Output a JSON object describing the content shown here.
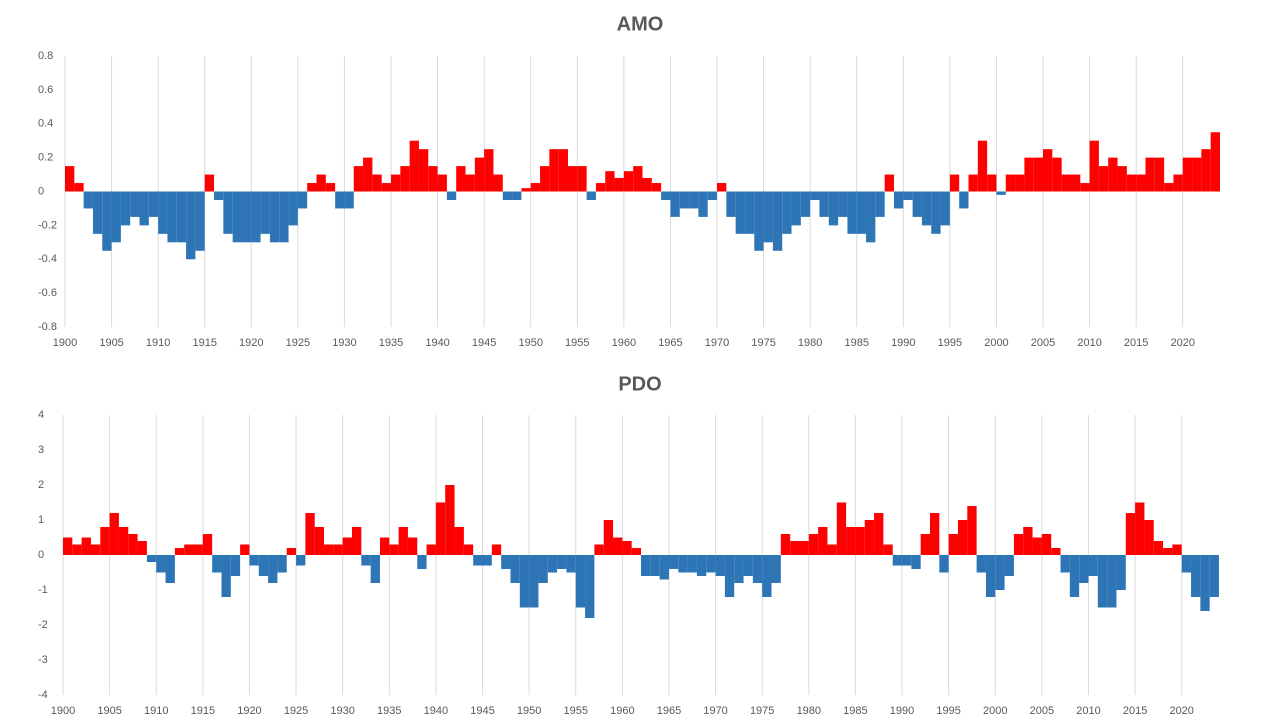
{
  "chart_data": [
    {
      "type": "bar",
      "title": "AMO",
      "x": [
        1900,
        1901,
        1902,
        1903,
        1904,
        1905,
        1906,
        1907,
        1908,
        1909,
        1910,
        1911,
        1912,
        1913,
        1914,
        1915,
        1916,
        1917,
        1918,
        1919,
        1920,
        1921,
        1922,
        1923,
        1924,
        1925,
        1926,
        1927,
        1928,
        1929,
        1930,
        1931,
        1932,
        1933,
        1934,
        1935,
        1936,
        1937,
        1938,
        1939,
        1940,
        1941,
        1942,
        1943,
        1944,
        1945,
        1946,
        1947,
        1948,
        1949,
        1950,
        1951,
        1952,
        1953,
        1954,
        1955,
        1956,
        1957,
        1958,
        1959,
        1960,
        1961,
        1962,
        1963,
        1964,
        1965,
        1966,
        1967,
        1968,
        1969,
        1970,
        1971,
        1972,
        1973,
        1974,
        1975,
        1976,
        1977,
        1978,
        1979,
        1980,
        1981,
        1982,
        1983,
        1984,
        1985,
        1986,
        1987,
        1988,
        1989,
        1990,
        1991,
        1992,
        1993,
        1994,
        1995,
        1996,
        1997,
        1998,
        1999,
        2000,
        2001,
        2002,
        2003,
        2004,
        2005,
        2006,
        2007,
        2008,
        2009,
        2010,
        2011,
        2012,
        2013,
        2014,
        2015,
        2016,
        2017,
        2018,
        2019,
        2020,
        2021,
        2022,
        2023
      ],
      "values": [
        0.15,
        0.05,
        -0.1,
        -0.25,
        -0.35,
        -0.3,
        -0.2,
        -0.15,
        -0.2,
        -0.15,
        -0.25,
        -0.3,
        -0.3,
        -0.4,
        -0.35,
        0.1,
        -0.05,
        -0.25,
        -0.3,
        -0.3,
        -0.3,
        -0.25,
        -0.3,
        -0.3,
        -0.2,
        -0.1,
        0.05,
        0.1,
        0.05,
        -0.1,
        -0.1,
        0.15,
        0.2,
        0.1,
        0.05,
        0.1,
        0.15,
        0.3,
        0.25,
        0.15,
        0.1,
        -0.05,
        0.15,
        0.1,
        0.2,
        0.25,
        0.1,
        -0.05,
        -0.05,
        0.02,
        0.05,
        0.15,
        0.25,
        0.25,
        0.15,
        0.15,
        -0.05,
        0.05,
        0.12,
        0.08,
        0.12,
        0.15,
        0.08,
        0.05,
        -0.05,
        -0.15,
        -0.1,
        -0.1,
        -0.15,
        -0.05,
        0.05,
        -0.15,
        -0.25,
        -0.25,
        -0.35,
        -0.3,
        -0.35,
        -0.25,
        -0.2,
        -0.15,
        -0.05,
        -0.15,
        -0.2,
        -0.15,
        -0.25,
        -0.25,
        -0.3,
        -0.15,
        0.1,
        -0.1,
        -0.05,
        -0.15,
        -0.2,
        -0.25,
        -0.2,
        0.1,
        -0.1,
        0.1,
        0.3,
        0.1,
        -0.02,
        0.1,
        0.1,
        0.2,
        0.2,
        0.25,
        0.2,
        0.1,
        0.1,
        0.05,
        0.3,
        0.15,
        0.2,
        0.15,
        0.1,
        0.1,
        0.2,
        0.2,
        0.05,
        0.1,
        0.2,
        0.2,
        0.25,
        0.35
      ],
      "positive_color": "#ff0000",
      "negative_color": "#2e75b6",
      "xlim": [
        1900,
        2024
      ],
      "xticks": [
        1900,
        1905,
        1910,
        1915,
        1920,
        1925,
        1930,
        1935,
        1940,
        1945,
        1950,
        1955,
        1960,
        1965,
        1970,
        1975,
        1980,
        1985,
        1990,
        1995,
        2000,
        2005,
        2010,
        2015,
        2020
      ],
      "ylim": [
        -0.8,
        0.8
      ],
      "yticks": [
        0.8,
        0.6,
        0.4,
        0.2,
        0,
        -0.2,
        -0.4,
        -0.6,
        -0.8
      ],
      "grid": true
    },
    {
      "type": "bar",
      "title": "PDO",
      "x": [
        1900,
        1901,
        1902,
        1903,
        1904,
        1905,
        1906,
        1907,
        1908,
        1909,
        1910,
        1911,
        1912,
        1913,
        1914,
        1915,
        1916,
        1917,
        1918,
        1919,
        1920,
        1921,
        1922,
        1923,
        1924,
        1925,
        1926,
        1927,
        1928,
        1929,
        1930,
        1931,
        1932,
        1933,
        1934,
        1935,
        1936,
        1937,
        1938,
        1939,
        1940,
        1941,
        1942,
        1943,
        1944,
        1945,
        1946,
        1947,
        1948,
        1949,
        1950,
        1951,
        1952,
        1953,
        1954,
        1955,
        1956,
        1957,
        1958,
        1959,
        1960,
        1961,
        1962,
        1963,
        1964,
        1965,
        1966,
        1967,
        1968,
        1969,
        1970,
        1971,
        1972,
        1973,
        1974,
        1975,
        1976,
        1977,
        1978,
        1979,
        1980,
        1981,
        1982,
        1983,
        1984,
        1985,
        1986,
        1987,
        1988,
        1989,
        1990,
        1991,
        1992,
        1993,
        1994,
        1995,
        1996,
        1997,
        1998,
        1999,
        2000,
        2001,
        2002,
        2003,
        2004,
        2005,
        2006,
        2007,
        2008,
        2009,
        2010,
        2011,
        2012,
        2013,
        2014,
        2015,
        2016,
        2017,
        2018,
        2019,
        2020,
        2021,
        2022,
        2023
      ],
      "values": [
        0.5,
        0.3,
        0.5,
        0.3,
        0.8,
        1.2,
        0.8,
        0.6,
        0.4,
        -0.2,
        -0.5,
        -0.8,
        0.2,
        0.3,
        0.3,
        0.6,
        -0.5,
        -1.2,
        -0.6,
        0.3,
        -0.3,
        -0.6,
        -0.8,
        -0.5,
        0.2,
        -0.3,
        1.2,
        0.8,
        0.3,
        0.3,
        0.5,
        0.8,
        -0.3,
        -0.8,
        0.5,
        0.3,
        0.8,
        0.5,
        -0.4,
        0.3,
        1.5,
        2.0,
        0.8,
        0.3,
        -0.3,
        -0.3,
        0.3,
        -0.4,
        -0.8,
        -1.5,
        -1.5,
        -0.8,
        -0.5,
        -0.4,
        -0.5,
        -1.5,
        -1.8,
        0.3,
        1.0,
        0.5,
        0.4,
        0.2,
        -0.6,
        -0.6,
        -0.7,
        -0.4,
        -0.5,
        -0.5,
        -0.6,
        -0.5,
        -0.6,
        -1.2,
        -0.8,
        -0.6,
        -0.8,
        -1.2,
        -0.8,
        0.6,
        0.4,
        0.4,
        0.6,
        0.8,
        0.3,
        1.5,
        0.8,
        0.8,
        1.0,
        1.2,
        0.3,
        -0.3,
        -0.3,
        -0.4,
        0.6,
        1.2,
        -0.5,
        0.6,
        1.0,
        1.4,
        -0.5,
        -1.2,
        -1.0,
        -0.6,
        0.6,
        0.8,
        0.5,
        0.6,
        0.2,
        -0.5,
        -1.2,
        -0.8,
        -0.6,
        -1.5,
        -1.5,
        -1.0,
        1.2,
        1.5,
        1.0,
        0.4,
        0.2,
        0.3,
        -0.5,
        -1.2,
        -1.6,
        -1.2
      ],
      "positive_color": "#ff0000",
      "negative_color": "#2e75b6",
      "xlim": [
        1900,
        2024
      ],
      "xticks": [
        1900,
        1905,
        1910,
        1915,
        1920,
        1925,
        1930,
        1935,
        1940,
        1945,
        1950,
        1955,
        1960,
        1965,
        1970,
        1975,
        1980,
        1985,
        1990,
        1995,
        2000,
        2005,
        2010,
        2015,
        2020
      ],
      "ylim": [
        -4,
        4
      ],
      "yticks": [
        4,
        3,
        2,
        1,
        0,
        -1,
        -2,
        -3,
        -4
      ],
      "grid": true
    }
  ]
}
